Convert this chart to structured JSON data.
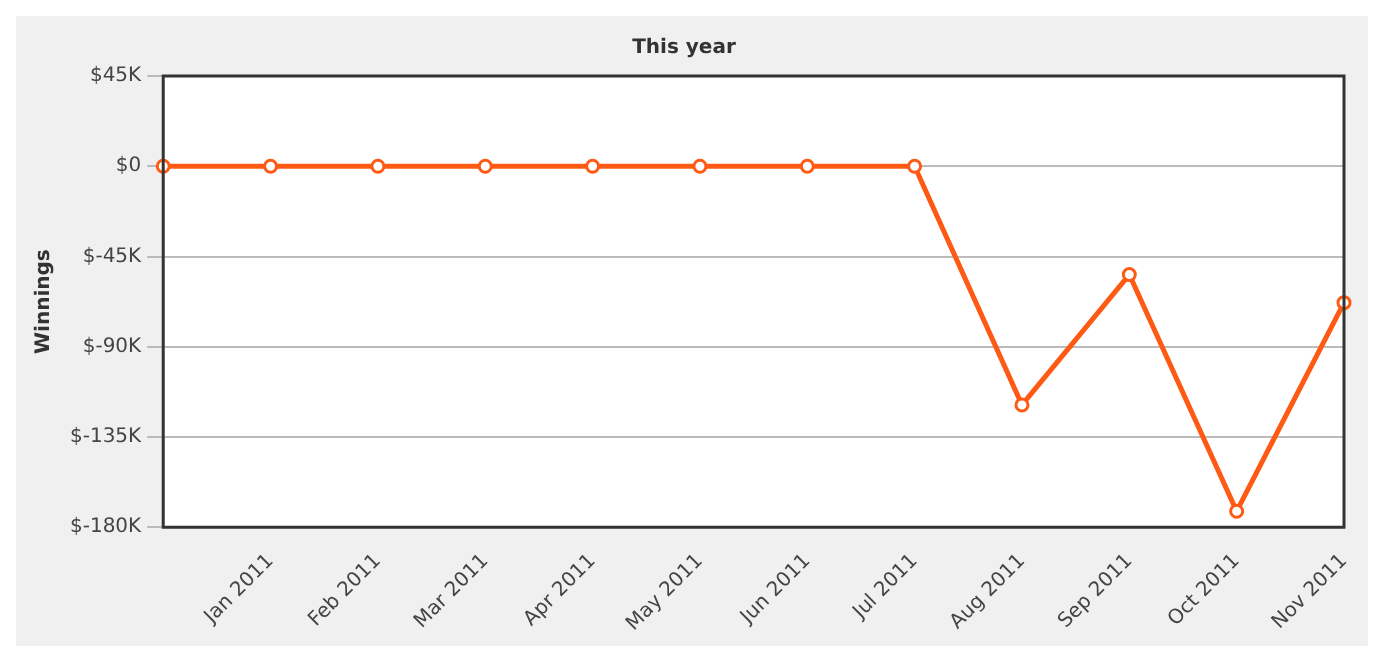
{
  "chart_data": {
    "type": "line",
    "title": "This year",
    "ylabel": "Winnings",
    "categories": [
      null,
      "Jan 2011",
      "Feb 2011",
      "Mar 2011",
      "Apr 2011",
      "May 2011",
      "Jun 2011",
      "Jul 2011",
      "Aug 2011",
      "Sep 2011",
      "Oct 2011",
      "Nov 2011"
    ],
    "series": [
      {
        "color": "#ff5a14",
        "values": [
          0,
          0,
          0,
          0,
          0,
          0,
          0,
          0,
          -119000,
          -54000,
          -172000,
          -68000
        ]
      }
    ],
    "ylim": [
      -180000,
      45000
    ],
    "yticks": [
      {
        "value": -180000,
        "label": "$-180K"
      },
      {
        "value": -135000,
        "label": "$-135K"
      },
      {
        "value": -90000,
        "label": "$-90K"
      },
      {
        "value": -45000,
        "label": "$-45K"
      },
      {
        "value": 0,
        "label": "$0"
      },
      {
        "value": 45000,
        "label": "$45K"
      }
    ],
    "grid": "y",
    "legend": false,
    "marker": "circle",
    "line_style": "solid"
  }
}
